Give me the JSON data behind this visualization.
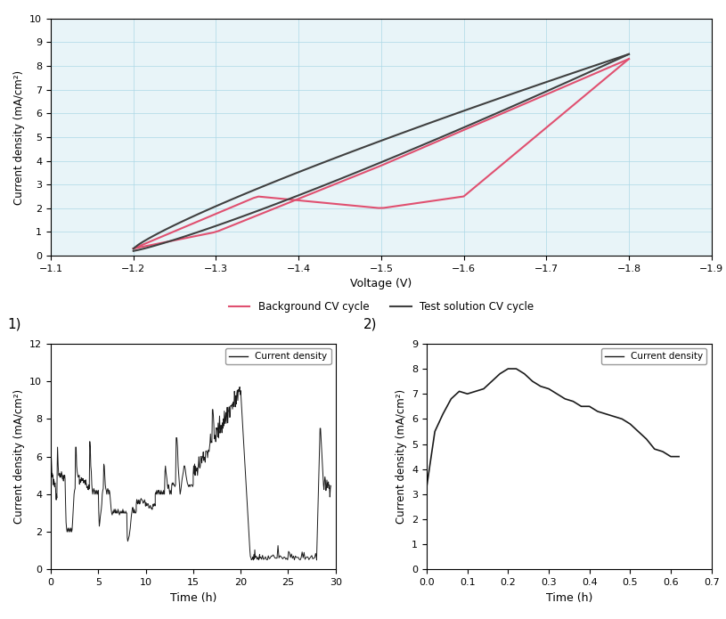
{
  "cv_xlim": [
    -1.1,
    -1.9
  ],
  "cv_ylim": [
    0.0,
    10.0
  ],
  "cv_xlabel": "Voltage (V)",
  "cv_ylabel": "Current density (mA/cm²)",
  "cv_yticks": [
    0.0,
    1.0,
    2.0,
    3.0,
    4.0,
    5.0,
    6.0,
    7.0,
    8.0,
    9.0,
    10.0
  ],
  "cv_xticks": [
    -1.1,
    -1.2,
    -1.3,
    -1.4,
    -1.5,
    -1.6,
    -1.7,
    -1.8,
    -1.9
  ],
  "bg_color": "#e8f4f8",
  "legend_bg": "#f0f0f0",
  "plot1_xlabel": "Time (h)",
  "plot1_ylabel": "Current density (mA/cm²)",
  "plot1_xlim": [
    0,
    30
  ],
  "plot1_ylim": [
    0,
    12
  ],
  "plot1_yticks": [
    0,
    2,
    4,
    6,
    8,
    10,
    12
  ],
  "plot1_xticks": [
    0,
    5,
    10,
    15,
    20,
    25,
    30
  ],
  "plot1_label": "1)",
  "plot2_xlabel": "Time (h)",
  "plot2_ylabel": "Current density (mA/cm²)",
  "plot2_xlim": [
    0.0,
    0.7
  ],
  "plot2_ylim": [
    0,
    9
  ],
  "plot2_yticks": [
    0,
    1,
    2,
    3,
    4,
    5,
    6,
    7,
    8,
    9
  ],
  "plot2_xticks": [
    0.0,
    0.1,
    0.2,
    0.3,
    0.4,
    0.5,
    0.6,
    0.7
  ],
  "plot2_label": "2)"
}
